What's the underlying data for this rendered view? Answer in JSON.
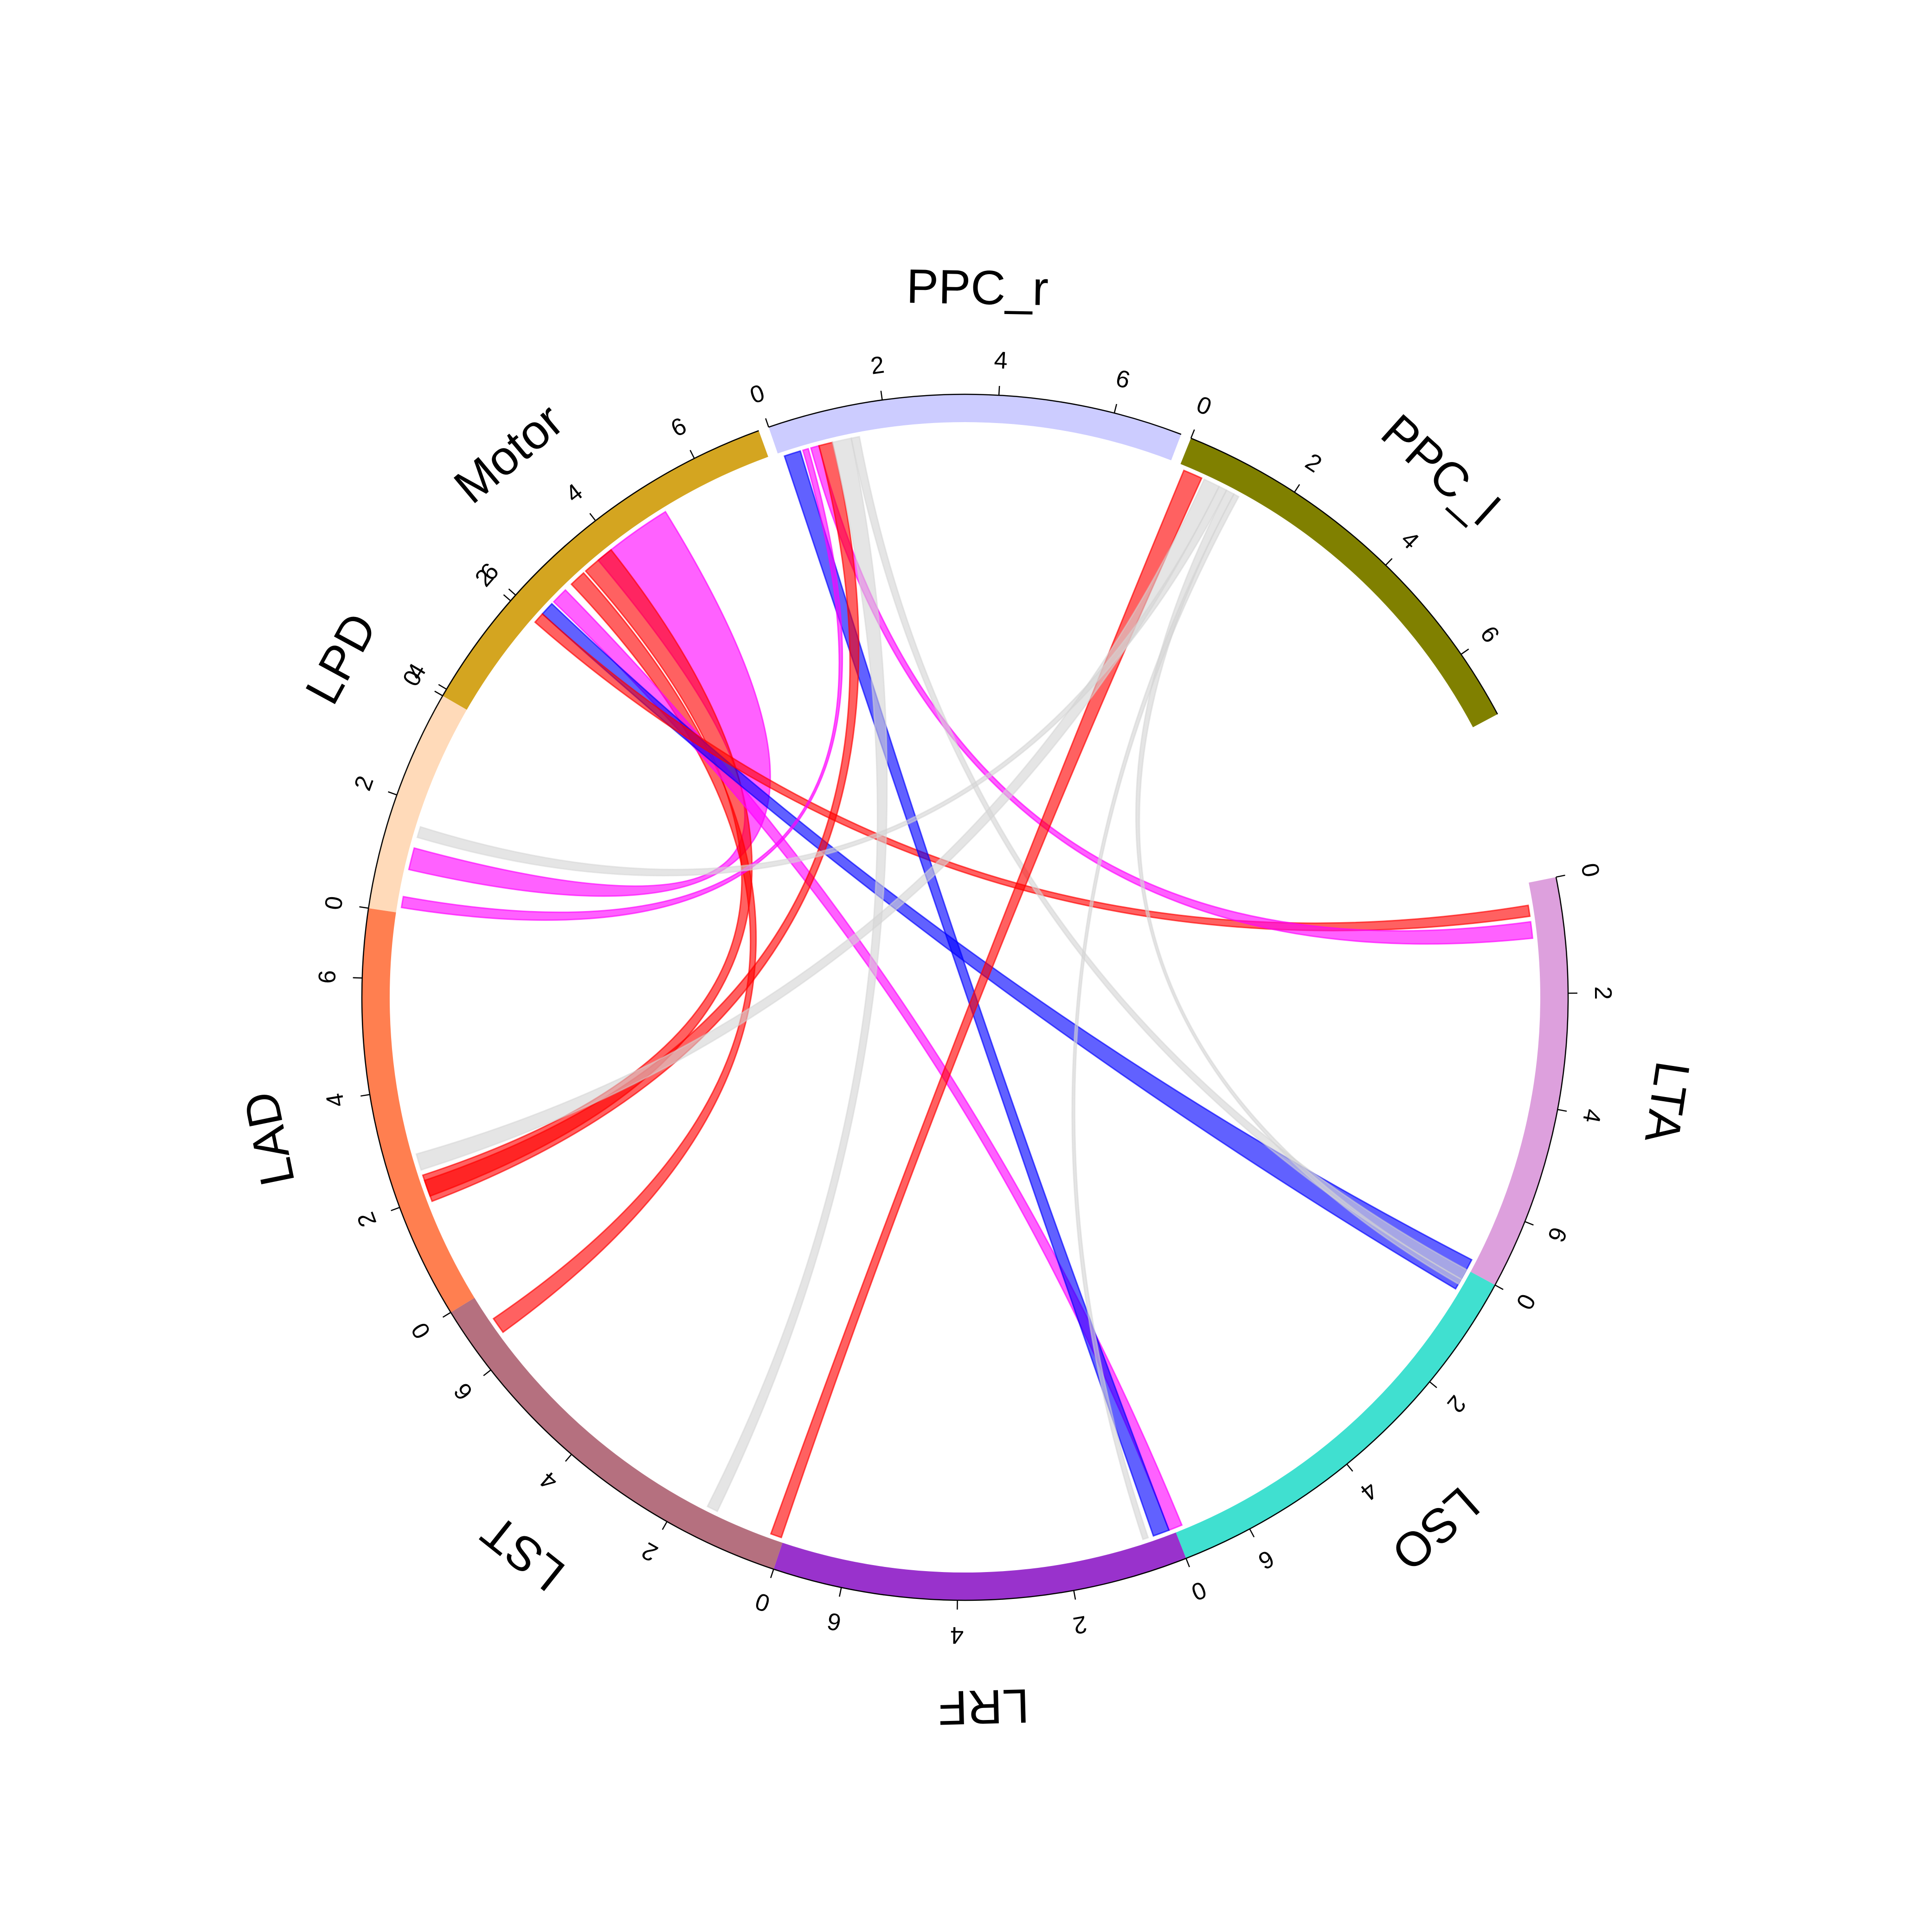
{
  "chart_data": {
    "type": "chord",
    "title": "",
    "max_value": 7.2,
    "tick_values": [
      0,
      2,
      4,
      6
    ],
    "sectors": [
      {
        "name": "PPC_r",
        "color": "#CCCCFF",
        "start_deg": -19,
        "end_deg": 21
      },
      {
        "name": "PPC_l",
        "color": "#808000",
        "start_deg": 22,
        "end_deg": 62
      },
      {
        "name": "LTA",
        "color": "#DDA0DD",
        "start_deg": 78.5,
        "end_deg": 118.5
      },
      {
        "name": "LSO",
        "color": "#40E0D0",
        "start_deg": 118.5,
        "end_deg": 158.5
      },
      {
        "name": "LRF",
        "color": "#9932CC",
        "start_deg": 158.5,
        "end_deg": 198.5
      },
      {
        "name": "LST",
        "color": "#B5707F",
        "start_deg": 198.5,
        "end_deg": 238.5
      },
      {
        "name": "LAD",
        "color": "#FF7F50",
        "start_deg": 238.5,
        "end_deg": 278.5
      },
      {
        "name": "LPD",
        "color": "#FFDAB9",
        "start_deg": 278.5,
        "end_deg": 318.5
      },
      {
        "name": "Motor",
        "color": "#D4A520",
        "start_deg": -60,
        "end_deg": -20
      }
    ],
    "links": [
      {
        "from": "Motor",
        "from_pos": [
          3.6,
          5.1
        ],
        "to": "LPD",
        "to_pos": [
          0.8,
          1.2
        ],
        "color": "#FF00FF"
      },
      {
        "from": "Motor",
        "from_pos": [
          3.3,
          3.9
        ],
        "to": "LAD",
        "to_pos": [
          2.0,
          2.4
        ],
        "color": "#FF0000"
      },
      {
        "from": "Motor",
        "from_pos": [
          2.95,
          3.25
        ],
        "to": "LST",
        "to_pos": [
          6.4,
          6.7
        ],
        "color": "#FF0000"
      },
      {
        "from": "Motor",
        "from_pos": [
          2.5,
          2.8
        ],
        "to": "LSO",
        "to_pos": [
          7.05,
          7.3
        ],
        "color": "#FF00FF"
      },
      {
        "from": "Motor",
        "from_pos": [
          2.2,
          2.45
        ],
        "to": "LTA",
        "to_pos": [
          7.0,
          7.6
        ],
        "color": "#0000FF"
      },
      {
        "from": "Motor",
        "from_pos": [
          2.0,
          2.2
        ],
        "to": "LTA",
        "to_pos": [
          0.4,
          0.6
        ],
        "color": "#FF0000"
      },
      {
        "from": "PPC_r",
        "from_pos": [
          0.1,
          0.4
        ],
        "to": "LRF",
        "to_pos": [
          0.1,
          0.4
        ],
        "color": "#0000FF"
      },
      {
        "from": "PPC_r",
        "from_pos": [
          0.45,
          0.55
        ],
        "to": "LPD",
        "to_pos": [
          0.1,
          0.3
        ],
        "color": "#FF00FF"
      },
      {
        "from": "PPC_r",
        "from_pos": [
          0.6,
          0.75
        ],
        "to": "LTA",
        "to_pos": [
          0.7,
          1.0
        ],
        "color": "#FF00FF"
      },
      {
        "from": "PPC_r",
        "from_pos": [
          0.75,
          1.0
        ],
        "to": "LAD",
        "to_pos": [
          1.9,
          2.3
        ],
        "color": "#FF0000"
      },
      {
        "from": "PPC_r",
        "from_pos": [
          1.0,
          1.35
        ],
        "to": "LST",
        "to_pos": [
          1.3,
          1.5
        ],
        "color": "#D3D3D3"
      },
      {
        "from": "PPC_r",
        "from_pos": [
          1.35,
          1.5
        ],
        "to": "LTA",
        "to_pos": [
          7.2,
          7.4
        ],
        "color": "#D3D3D3"
      },
      {
        "from": "PPC_l",
        "from_pos": [
          0.1,
          0.45
        ],
        "to": "LST",
        "to_pos": [
          0.05,
          0.25
        ],
        "color": "#FF0000"
      },
      {
        "from": "PPC_l",
        "from_pos": [
          0.5,
          0.8
        ],
        "to": "LAD",
        "to_pos": [
          2.5,
          2.8
        ],
        "color": "#D3D3D3"
      },
      {
        "from": "PPC_l",
        "from_pos": [
          0.8,
          0.95
        ],
        "to": "LPD",
        "to_pos": [
          1.4,
          1.6
        ],
        "color": "#D3D3D3"
      },
      {
        "from": "PPC_l",
        "from_pos": [
          0.95,
          1.1
        ],
        "to": "LTA",
        "to_pos": [
          7.4,
          7.5
        ],
        "color": "#D3D3D3"
      },
      {
        "from": "PPC_l",
        "from_pos": [
          1.1,
          1.2
        ],
        "to": "LRF",
        "to_pos": [
          0.5,
          0.6
        ],
        "color": "#D3D3D3"
      }
    ]
  }
}
